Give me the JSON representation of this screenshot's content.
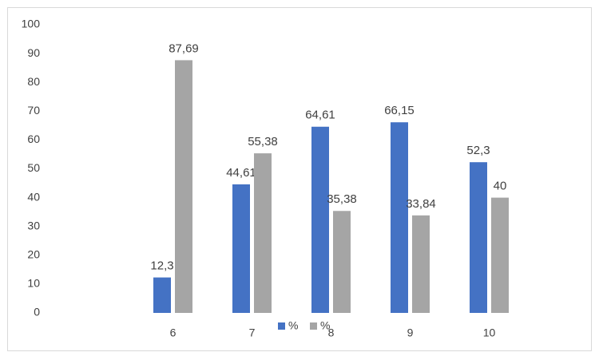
{
  "chart_data": {
    "type": "bar",
    "categories": [
      null,
      "6",
      "7",
      "8",
      "9",
      "10"
    ],
    "series": [
      {
        "name": "%",
        "color": "#4472c4",
        "values": [
          null,
          12.3,
          44.61,
          64.61,
          66.15,
          52.3
        ],
        "value_labels": [
          null,
          "12,3",
          "44,61",
          "64,61",
          "66,15",
          "52,3"
        ]
      },
      {
        "name": "%",
        "color": "#a5a5a5",
        "values": [
          null,
          87.69,
          55.38,
          35.38,
          33.84,
          40
        ],
        "value_labels": [
          null,
          "87,69",
          "55,38",
          "35,38",
          "33,84",
          "40"
        ]
      }
    ],
    "ylim": [
      0,
      100
    ],
    "yticks": [
      0,
      10,
      20,
      30,
      40,
      50,
      60,
      70,
      80,
      90,
      100
    ],
    "grid": false
  }
}
